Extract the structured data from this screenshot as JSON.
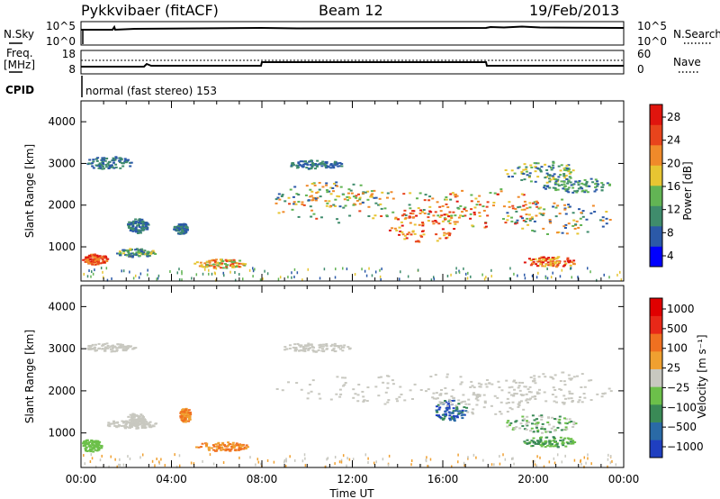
{
  "header": {
    "station": "Pykkvibaer (fitACF)",
    "beam": "Beam 12",
    "date": "19/Feb/2013"
  },
  "noise_panel": {
    "left_label": "N.Sky",
    "right_label": "N.Search",
    "left_ticks": [
      "10^5",
      "10^0"
    ],
    "right_ticks": [
      "10^5",
      "10^0"
    ]
  },
  "freq_panel": {
    "left_label_1": "Freq.",
    "left_label_2": "[MHz]",
    "right_label": "Nave",
    "left_ticks": [
      "18",
      "8"
    ],
    "right_ticks": [
      "60",
      "0"
    ]
  },
  "cpid_panel": {
    "label": "CPID",
    "text": "normal (fast stereo) 153"
  },
  "chart_data": [
    {
      "type": "heatmap",
      "name": "power",
      "ylabel": "Slant Range [km]",
      "y_ticks": [
        "4000",
        "3000",
        "2000",
        "1000"
      ],
      "ylim": [
        180,
        4500
      ],
      "colorbar_label": "Power [dB]",
      "colorbar_ticks": [
        "28",
        "24",
        "20",
        "16",
        "12",
        "8",
        "4"
      ],
      "colorbar_colors": [
        "#0000ff",
        "#2b59a8",
        "#3f8c6c",
        "#62b454",
        "#e7c532",
        "#f08a2a",
        "#e8441c",
        "#e0150e"
      ]
    },
    {
      "type": "heatmap",
      "name": "velocity",
      "ylabel": "Slant Range [km]",
      "y_ticks": [
        "4000",
        "3000",
        "2000",
        "1000"
      ],
      "ylim": [
        180,
        4500
      ],
      "colorbar_label": "Velocity [m s⁻¹]",
      "colorbar_ticks": [
        "1000",
        "500",
        "100",
        "25",
        "−25",
        "−100",
        "−500",
        "−1000"
      ],
      "colorbar_colors": [
        "#1f3fc0",
        "#2a6aa6",
        "#3a8a56",
        "#6cc04a",
        "#c8c8c0",
        "#f0a030",
        "#f07020",
        "#e82818",
        "#e00000"
      ]
    }
  ],
  "x_axis": {
    "ticks": [
      "00:00",
      "04:00",
      "08:00",
      "12:00",
      "16:00",
      "20:00",
      "00:00"
    ],
    "label": "Time UT"
  }
}
